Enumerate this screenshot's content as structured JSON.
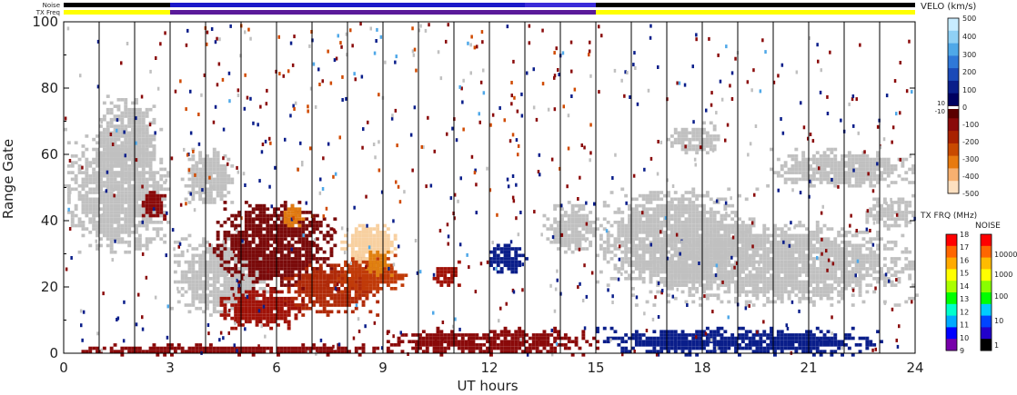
{
  "chart_data": {
    "type": "heatmap",
    "xlabel": "UT hours",
    "ylabel": "Range Gate",
    "xlim": [
      0,
      24
    ],
    "ylim": [
      0,
      100
    ],
    "x_ticks": [
      "0",
      "3",
      "6",
      "9",
      "12",
      "15",
      "18",
      "21",
      "24"
    ],
    "y_ticks": [
      "0",
      "20",
      "40",
      "60",
      "80",
      "100"
    ],
    "vertical_lines_every_hours": 1,
    "status_bars": {
      "noise_label": "Noise",
      "txfreq_label": "TX Freq",
      "noise_segments": [
        {
          "from": 0,
          "to": 3,
          "color": "#000000"
        },
        {
          "from": 3,
          "to": 13,
          "color": "#1a18c8"
        },
        {
          "from": 13,
          "to": 15,
          "color": "#3a2bd8"
        },
        {
          "from": 15,
          "to": 24,
          "color": "#000000"
        }
      ],
      "txfreq_segments": [
        {
          "from": 0,
          "to": 3,
          "color": "#ffff00"
        },
        {
          "from": 3,
          "to": 15,
          "color": "#5a1a9a"
        },
        {
          "from": 15,
          "to": 24,
          "color": "#ffff00"
        }
      ]
    },
    "velocity_colorbar": {
      "title": "VELO (km/s)",
      "ticks": [
        "500",
        "400",
        "300",
        "200",
        "100",
        "0",
        "-100",
        "-200",
        "-300",
        "-400",
        "-500"
      ],
      "small_labels": [
        "10",
        "-10"
      ],
      "colors_top_to_bottom": [
        "#c8ecff",
        "#8fd0f5",
        "#4fa8e8",
        "#2f78d8",
        "#1a4ab8",
        "#0a1e8a",
        "#000060",
        "#5a0000",
        "#8a0a0a",
        "#a82200",
        "#c84a00",
        "#e87a10",
        "#f7b070",
        "#fde0c0"
      ]
    },
    "txfreq_colorbar": {
      "title": "TX FRQ (MHz)",
      "ticks": [
        "18",
        "17",
        "16",
        "15",
        "14",
        "13",
        "12",
        "11",
        "10",
        "9"
      ],
      "colors_top_to_bottom": [
        "#ff0000",
        "#ff6600",
        "#ffaa00",
        "#ffff00",
        "#aaff00",
        "#00ff00",
        "#00ffcc",
        "#00aaff",
        "#0000ff",
        "#7700aa"
      ]
    },
    "noise_colorbar": {
      "title": "NOISE",
      "ticks": [
        "10000",
        "1000",
        "100",
        "10",
        "1"
      ],
      "colors_top_to_bottom": [
        "#ff0000",
        "#ff6600",
        "#ffbb00",
        "#ffff00",
        "#88ff00",
        "#00ff00",
        "#00ccff",
        "#0044ff",
        "#2200cc",
        "#000000"
      ]
    },
    "regions": [
      {
        "x": [
          0.0,
          3.0
        ],
        "y": [
          30,
          68
        ],
        "kind": "ground_scatter"
      },
      {
        "x": [
          0.9,
          2.6
        ],
        "y": [
          52,
          78
        ],
        "kind": "ground_scatter"
      },
      {
        "x": [
          2.1,
          2.9
        ],
        "y": [
          40,
          50
        ],
        "kind": "negative_velocity",
        "color": "#8a0a0a"
      },
      {
        "x": [
          3.0,
          5.8
        ],
        "y": [
          12,
          36
        ],
        "kind": "ground_scatter"
      },
      {
        "x": [
          3.3,
          4.8
        ],
        "y": [
          45,
          62
        ],
        "kind": "ground_scatter"
      },
      {
        "x": [
          4.2,
          7.6
        ],
        "y": [
          20,
          46
        ],
        "kind": "negative_velocity",
        "color": "#7a0a0a"
      },
      {
        "x": [
          4.3,
          6.7
        ],
        "y": [
          8,
          20
        ],
        "kind": "negative_velocity",
        "color": "#a01208"
      },
      {
        "x": [
          6.2,
          8.8
        ],
        "y": [
          12,
          28
        ],
        "kind": "negative_velocity",
        "color": "#b02a08"
      },
      {
        "x": [
          6.0,
          6.8
        ],
        "y": [
          38,
          46
        ],
        "kind": "negative_velocity",
        "color": "#e07a10"
      },
      {
        "x": [
          7.6,
          9.6
        ],
        "y": [
          18,
          30
        ],
        "kind": "negative_velocity",
        "color": "#c03a08"
      },
      {
        "x": [
          7.8,
          9.4
        ],
        "y": [
          28,
          40
        ],
        "kind": "negative_velocity",
        "color": "#f8d0a0"
      },
      {
        "x": [
          8.4,
          9.2
        ],
        "y": [
          24,
          31
        ],
        "kind": "negative_velocity",
        "color": "#e08010"
      },
      {
        "x": [
          10.4,
          11.1
        ],
        "y": [
          20,
          28
        ],
        "kind": "negative_velocity",
        "color": "#a01208"
      },
      {
        "x": [
          11.9,
          13.0
        ],
        "y": [
          24,
          34
        ],
        "kind": "positive_velocity",
        "color": "#0a1e8a"
      },
      {
        "x": [
          13.5,
          15.0
        ],
        "y": [
          30,
          46
        ],
        "kind": "ground_scatter"
      },
      {
        "x": [
          15.0,
          19.5
        ],
        "y": [
          20,
          50
        ],
        "kind": "ground_scatter"
      },
      {
        "x": [
          16.0,
          24.0
        ],
        "y": [
          15,
          40
        ],
        "kind": "ground_scatter"
      },
      {
        "x": [
          17.0,
          18.5
        ],
        "y": [
          60,
          70
        ],
        "kind": "ground_scatter"
      },
      {
        "x": [
          19.8,
          24.0
        ],
        "y": [
          50,
          62
        ],
        "kind": "ground_scatter"
      },
      {
        "x": [
          22.5,
          24.0
        ],
        "y": [
          38,
          48
        ],
        "kind": "ground_scatter"
      },
      {
        "x": [
          0.2,
          9.5
        ],
        "y": [
          0,
          3
        ],
        "kind": "negative_velocity",
        "color": "#8a0a0a"
      },
      {
        "x": [
          9.0,
          15.0
        ],
        "y": [
          0,
          8
        ],
        "kind": "negative_velocity",
        "color": "#8a0a0a"
      },
      {
        "x": [
          15.0,
          23.0
        ],
        "y": [
          0,
          8
        ],
        "kind": "positive_velocity",
        "color": "#0a1e8a"
      }
    ],
    "speckle": [
      {
        "x": [
          0.0,
          24.0
        ],
        "y": [
          0,
          100
        ],
        "color": "#8a0a0a",
        "count": 260
      },
      {
        "x": [
          0.0,
          24.0
        ],
        "y": [
          0,
          100
        ],
        "color": "#0a1e8a",
        "count": 220
      },
      {
        "x": [
          0.0,
          24.0
        ],
        "y": [
          0,
          100
        ],
        "color": "#c0c0c0",
        "count": 160
      },
      {
        "x": [
          3.0,
          15.0
        ],
        "y": [
          40,
          100
        ],
        "color": "#d04a00",
        "count": 70
      },
      {
        "x": [
          0.0,
          24.0
        ],
        "y": [
          0,
          100
        ],
        "color": "#4fa8e8",
        "count": 40
      }
    ]
  }
}
